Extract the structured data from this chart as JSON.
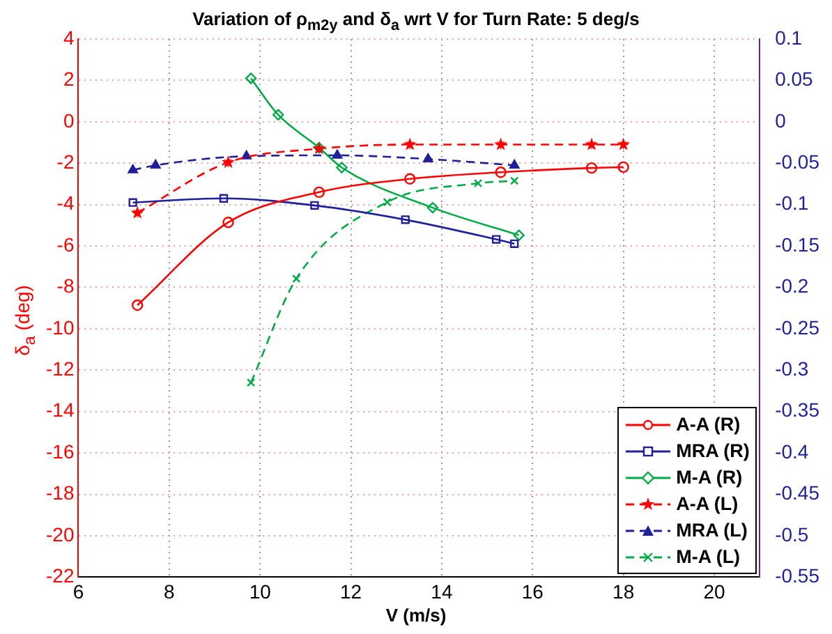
{
  "chart_data": {
    "type": "line",
    "title": "Variation of ρ$_{m2y}$ and δ$_{a}$ wrt V for Turn Rate: 5 deg/s",
    "xlabel": "V (m/s)",
    "ylabel": "δ$_{a}$ (deg)",
    "xlim": [
      6,
      21
    ],
    "xticks": [
      6,
      8,
      10,
      12,
      14,
      16,
      18,
      20
    ],
    "ylim": [
      -22,
      4
    ],
    "yticks": [
      -22,
      -20,
      -18,
      -16,
      -14,
      -12,
      -10,
      -8,
      -6,
      -4,
      -2,
      0,
      2,
      4
    ],
    "y2lim": [
      -0.55,
      0.1
    ],
    "y2ticks": [
      -0.55,
      -0.5,
      -0.45,
      -0.4,
      -0.35,
      -0.3,
      -0.25,
      -0.2,
      -0.15,
      -0.1,
      -0.05,
      0,
      0.05,
      0.1
    ],
    "grid": true,
    "legend": "bottom right",
    "series": [
      {
        "name": "A-A (R)",
        "color": "#ff0000",
        "marker": "circle",
        "line_style": "solid",
        "x": [
          7.3,
          9.3,
          11.3,
          13.3,
          15.3,
          17.3,
          18
        ],
        "values": [
          -8.86,
          -4.86,
          -3.4,
          -2.76,
          -2.44,
          -2.23,
          -2.19
        ]
      },
      {
        "name": "MRA (R)",
        "color": "#1f1f99",
        "marker": "square",
        "line_style": "solid",
        "x": [
          7.2,
          9.2,
          11.2,
          13.2,
          15.2,
          15.6
        ],
        "values": [
          -3.9,
          -3.7,
          -4.04,
          -4.73,
          -5.68,
          -5.89
        ]
      },
      {
        "name": "M-A (R)",
        "color": "#00aa44",
        "marker": "diamond",
        "line_style": "solid",
        "x": [
          9.8,
          10.4,
          11.3,
          11.8,
          13.8,
          15.7
        ],
        "values": [
          2.1,
          0.34,
          -1.25,
          -2.21,
          -4.15,
          -5.48
        ]
      },
      {
        "name": "A-A (L)",
        "color": "#ff0000",
        "marker": "star",
        "line_style": "dashed",
        "x": [
          7.3,
          9.3,
          11.3,
          13.3,
          15.3,
          17.3,
          18
        ],
        "values": [
          -4.4,
          -1.96,
          -1.3,
          -1.1,
          -1.1,
          -1.1,
          -1.1
        ]
      },
      {
        "name": "MRA (L)",
        "color": "#1f1f99",
        "marker": "triangle",
        "line_style": "dashed",
        "x": [
          7.2,
          7.7,
          9.7,
          11.7,
          13.7,
          15.6
        ],
        "values": [
          -2.33,
          -2.1,
          -1.66,
          -1.62,
          -1.8,
          -2.1
        ]
      },
      {
        "name": "M-A (L)",
        "color": "#00aa44",
        "marker": "cross",
        "line_style": "dashed",
        "x": [
          9.8,
          10.8,
          12.8,
          14.8,
          15.6
        ],
        "values": [
          -12.6,
          -7.58,
          -3.88,
          -2.97,
          -2.85
        ]
      }
    ]
  }
}
